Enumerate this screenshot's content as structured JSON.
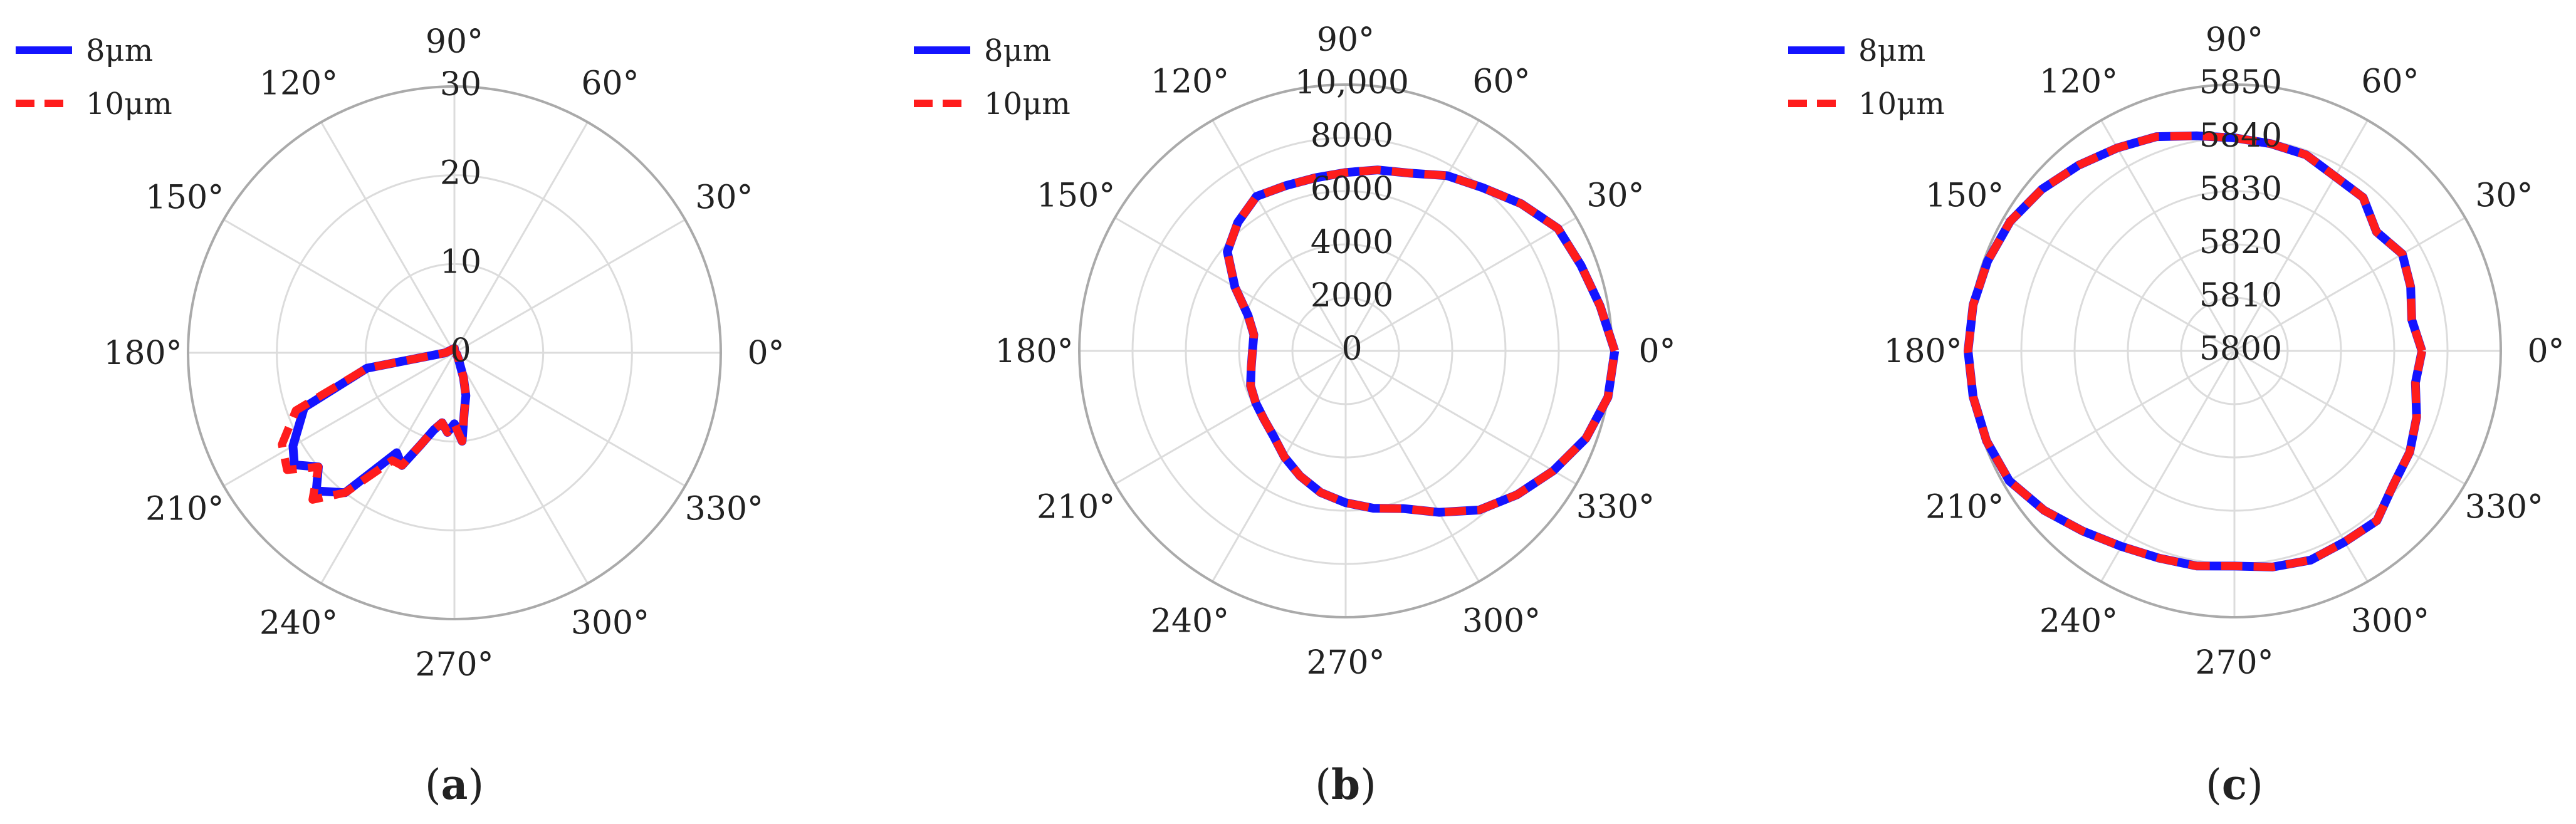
{
  "colors": {
    "series_8": "#1414ff",
    "series_10": "#ff1c1c",
    "grid": "#dcdcdc",
    "outer_ring": "#aaaaaa"
  },
  "chart_data": [
    {
      "type": "polar-line",
      "panel_label": "a",
      "angle_unit": "degrees",
      "angular_ticks": [
        "0°",
        "30°",
        "60°",
        "90°",
        "120°",
        "150°",
        "180°",
        "210°",
        "240°",
        "270°",
        "300°",
        "330°"
      ],
      "radial_range": [
        0,
        30
      ],
      "radial_ticks": [
        "0",
        "10",
        "20",
        "30"
      ],
      "grid": true,
      "legend_position": "top-left",
      "series": [
        {
          "name": "8μm",
          "style": "solid",
          "points": [
            [
              0,
              0
            ],
            [
              90,
              0.5
            ],
            [
              180,
              1
            ],
            [
              190,
              10
            ],
            [
              200,
              18
            ],
            [
              210,
              21
            ],
            [
              215,
              22
            ],
            [
              220,
              20
            ],
            [
              225,
              22
            ],
            [
              232,
              20
            ],
            [
              240,
              13
            ],
            [
              245,
              14
            ],
            [
              250,
              11
            ],
            [
              255,
              9
            ],
            [
              260,
              8
            ],
            [
              265,
              9
            ],
            [
              270,
              8
            ],
            [
              275,
              10
            ],
            [
              280,
              6.5
            ],
            [
              285,
              5
            ],
            [
              290,
              3
            ],
            [
              300,
              1
            ],
            [
              330,
              0.3
            ],
            [
              360,
              0
            ]
          ]
        },
        {
          "name": "10μm",
          "style": "dashed",
          "points": [
            [
              0,
              0
            ],
            [
              90,
              0.5
            ],
            [
              180,
              1
            ],
            [
              190,
              10
            ],
            [
              200,
              19
            ],
            [
              208,
              22
            ],
            [
              215,
              23
            ],
            [
              220,
              20
            ],
            [
              226,
              23
            ],
            [
              232,
              20
            ],
            [
              240,
              14
            ],
            [
              245,
              14
            ],
            [
              250,
              11
            ],
            [
              255,
              9
            ],
            [
              260,
              8
            ],
            [
              265,
              9
            ],
            [
              270,
              8
            ],
            [
              275,
              10
            ],
            [
              280,
              6.5
            ],
            [
              285,
              5
            ],
            [
              290,
              3
            ],
            [
              300,
              1
            ],
            [
              330,
              0.3
            ],
            [
              360,
              0
            ]
          ]
        }
      ]
    },
    {
      "type": "polar-line",
      "panel_label": "b",
      "angle_unit": "degrees",
      "angular_ticks": [
        "0°",
        "30°",
        "60°",
        "90°",
        "120°",
        "150°",
        "180°",
        "210°",
        "240°",
        "270°",
        "300°",
        "330°"
      ],
      "radial_range": [
        0,
        10000
      ],
      "radial_ticks": [
        "0",
        "2000",
        "4000",
        "6000",
        "8000",
        "10,000"
      ],
      "grid": true,
      "legend_position": "top-left",
      "series": [
        {
          "name": "8μm",
          "style": "solid",
          "points": [
            [
              0,
              10100
            ],
            [
              10,
              9700
            ],
            [
              20,
              9400
            ],
            [
              30,
              9200
            ],
            [
              40,
              8600
            ],
            [
              50,
              8000
            ],
            [
              60,
              7600
            ],
            [
              70,
              7100
            ],
            [
              80,
              6900
            ],
            [
              90,
              6700
            ],
            [
              100,
              6600
            ],
            [
              110,
              6600
            ],
            [
              120,
              6700
            ],
            [
              130,
              6300
            ],
            [
              140,
              5800
            ],
            [
              150,
              4800
            ],
            [
              160,
              3900
            ],
            [
              170,
              3500
            ],
            [
              180,
              3500
            ],
            [
              190,
              3600
            ],
            [
              200,
              3800
            ],
            [
              210,
              3900
            ],
            [
              220,
              4000
            ],
            [
              230,
              4200
            ],
            [
              240,
              4600
            ],
            [
              250,
              5000
            ],
            [
              260,
              5400
            ],
            [
              270,
              5700
            ],
            [
              280,
              6000
            ],
            [
              290,
              6300
            ],
            [
              300,
              7000
            ],
            [
              310,
              7800
            ],
            [
              320,
              8400
            ],
            [
              330,
              9000
            ],
            [
              340,
              9600
            ],
            [
              350,
              10000
            ],
            [
              360,
              10100
            ]
          ]
        },
        {
          "name": "10μm",
          "style": "dashed",
          "points": [
            [
              0,
              10100
            ],
            [
              10,
              9700
            ],
            [
              20,
              9400
            ],
            [
              30,
              9200
            ],
            [
              40,
              8600
            ],
            [
              50,
              8000
            ],
            [
              60,
              7600
            ],
            [
              70,
              7100
            ],
            [
              80,
              6900
            ],
            [
              90,
              6700
            ],
            [
              100,
              6600
            ],
            [
              110,
              6600
            ],
            [
              120,
              6700
            ],
            [
              130,
              6300
            ],
            [
              140,
              5800
            ],
            [
              150,
              4800
            ],
            [
              160,
              3900
            ],
            [
              170,
              3500
            ],
            [
              180,
              3500
            ],
            [
              190,
              3600
            ],
            [
              200,
              3800
            ],
            [
              210,
              3900
            ],
            [
              220,
              4000
            ],
            [
              230,
              4200
            ],
            [
              240,
              4600
            ],
            [
              250,
              5000
            ],
            [
              260,
              5400
            ],
            [
              270,
              5700
            ],
            [
              280,
              6000
            ],
            [
              290,
              6300
            ],
            [
              300,
              7000
            ],
            [
              310,
              7800
            ],
            [
              320,
              8400
            ],
            [
              330,
              9000
            ],
            [
              340,
              9600
            ],
            [
              350,
              10000
            ],
            [
              360,
              10100
            ]
          ]
        }
      ]
    },
    {
      "type": "polar-line",
      "panel_label": "c",
      "angle_unit": "degrees",
      "angular_ticks": [
        "0°",
        "30°",
        "60°",
        "90°",
        "120°",
        "150°",
        "180°",
        "210°",
        "240°",
        "270°",
        "300°",
        "330°"
      ],
      "radial_range": [
        5800,
        5850
      ],
      "radial_ticks": [
        "5800",
        "5810",
        "5820",
        "5830",
        "5840",
        "5850"
      ],
      "grid": true,
      "legend_position": "top-left",
      "series": [
        {
          "name": "8μm",
          "style": "solid",
          "points": [
            [
              0,
              5835.2
            ],
            [
              10,
              5833.8
            ],
            [
              20,
              5835.2
            ],
            [
              30,
              5836.4
            ],
            [
              40,
              5834.8
            ],
            [
              50,
              5837.6
            ],
            [
              60,
              5837.8
            ],
            [
              70,
              5839.2
            ],
            [
              80,
              5839.5
            ],
            [
              90,
              5840.0
            ],
            [
              100,
              5841.0
            ],
            [
              110,
              5842.8
            ],
            [
              120,
              5844.0
            ],
            [
              130,
              5845.5
            ],
            [
              140,
              5847.2
            ],
            [
              150,
              5848.6
            ],
            [
              160,
              5849.3
            ],
            [
              170,
              5849.8
            ],
            [
              180,
              5850.0
            ],
            [
              190,
              5849.8
            ],
            [
              200,
              5849.5
            ],
            [
              210,
              5848.8
            ],
            [
              220,
              5846.6
            ],
            [
              230,
              5844.2
            ],
            [
              240,
              5842.4
            ],
            [
              250,
              5841.4
            ],
            [
              260,
              5841.0
            ],
            [
              270,
              5840.4
            ],
            [
              280,
              5841.2
            ],
            [
              290,
              5841.8
            ],
            [
              300,
              5841.4
            ],
            [
              310,
              5841.6
            ],
            [
              320,
              5839.0
            ],
            [
              330,
              5838.0
            ],
            [
              340,
              5836.4
            ],
            [
              350,
              5834.5
            ],
            [
              360,
              5835.2
            ]
          ]
        },
        {
          "name": "10μm",
          "style": "dashed",
          "points": [
            [
              0,
              5835.2
            ],
            [
              10,
              5833.8
            ],
            [
              20,
              5835.2
            ],
            [
              30,
              5836.4
            ],
            [
              40,
              5834.8
            ],
            [
              50,
              5837.6
            ],
            [
              60,
              5837.8
            ],
            [
              70,
              5839.2
            ],
            [
              80,
              5839.5
            ],
            [
              90,
              5840.0
            ],
            [
              100,
              5841.0
            ],
            [
              110,
              5842.8
            ],
            [
              120,
              5844.0
            ],
            [
              130,
              5845.5
            ],
            [
              140,
              5847.2
            ],
            [
              150,
              5848.6
            ],
            [
              160,
              5849.3
            ],
            [
              170,
              5849.8
            ],
            [
              180,
              5850.0
            ],
            [
              190,
              5849.8
            ],
            [
              200,
              5849.5
            ],
            [
              210,
              5848.8
            ],
            [
              220,
              5846.6
            ],
            [
              230,
              5844.2
            ],
            [
              240,
              5842.4
            ],
            [
              250,
              5841.4
            ],
            [
              260,
              5841.0
            ],
            [
              270,
              5840.4
            ],
            [
              280,
              5841.2
            ],
            [
              290,
              5841.8
            ],
            [
              300,
              5841.4
            ],
            [
              310,
              5841.6
            ],
            [
              320,
              5839.0
            ],
            [
              330,
              5838.0
            ],
            [
              340,
              5836.4
            ],
            [
              350,
              5834.5
            ],
            [
              360,
              5835.2
            ]
          ]
        }
      ]
    }
  ]
}
